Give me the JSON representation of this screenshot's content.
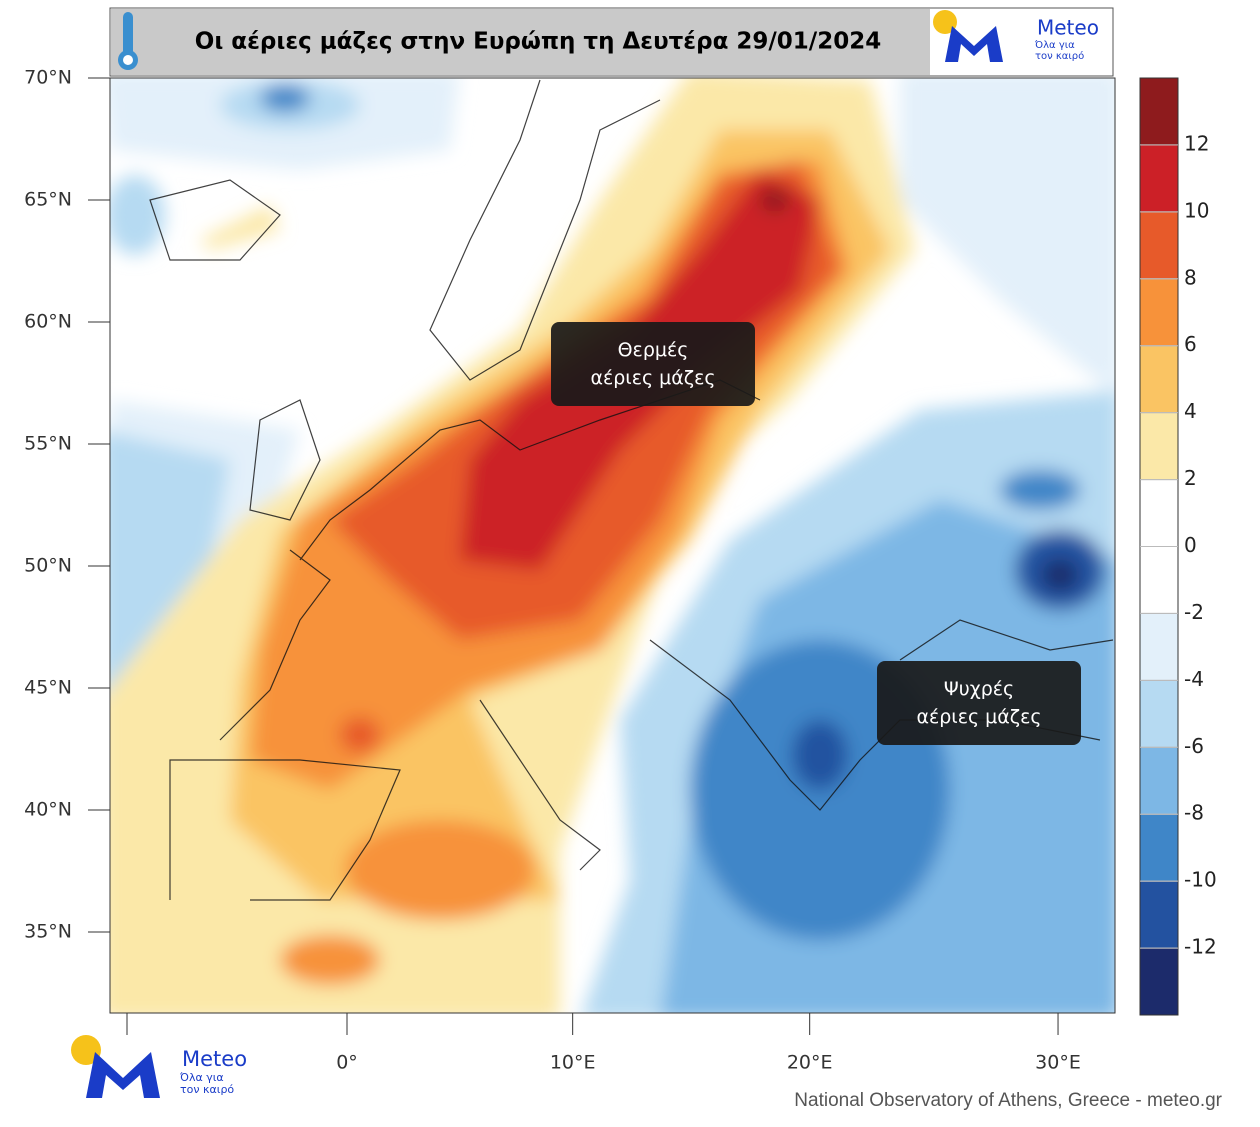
{
  "header": {
    "title": "Οι αέριες μάζες στην Ευρώπη τη Δευτέρα 29/01/2024"
  },
  "logo": {
    "name": "Meteo",
    "tagline": "Όλα για τον καιρό"
  },
  "map": {
    "lat_ticks": [
      {
        "value": 70,
        "label": "70°N"
      },
      {
        "value": 65,
        "label": "65°N"
      },
      {
        "value": 60,
        "label": "60°N"
      },
      {
        "value": 55,
        "label": "55°N"
      },
      {
        "value": 50,
        "label": "50°N"
      },
      {
        "value": 45,
        "label": "45°N"
      },
      {
        "value": 40,
        "label": "40°N"
      },
      {
        "value": 35,
        "label": "35°N"
      }
    ],
    "lon_ticks": [
      {
        "value": 0,
        "label": "0°"
      },
      {
        "value": 10,
        "label": "10°E"
      },
      {
        "value": 20,
        "label": "20°E"
      },
      {
        "value": 30,
        "label": "30°E"
      }
    ],
    "annotations": [
      "Θερμές αέριες μάζες",
      "Ψυχρές αέριες μάζες"
    ]
  },
  "colorbar": {
    "clim": [
      -14,
      14
    ],
    "ticks": [
      -12,
      -10,
      -8,
      -6,
      -4,
      -2,
      0,
      2,
      4,
      6,
      8,
      10,
      12
    ],
    "colors": [
      "#1c2b6b",
      "#2352a0",
      "#3f86c8",
      "#7db7e5",
      "#b6daf2",
      "#e3f0fa",
      "#ffffff",
      "#ffffff",
      "#fbe8a8",
      "#fac463",
      "#f7923a",
      "#e75a2a",
      "#cc2027",
      "#8e1b1d"
    ]
  },
  "credit": "National Observatory of Athens, Greece - meteo.gr"
}
